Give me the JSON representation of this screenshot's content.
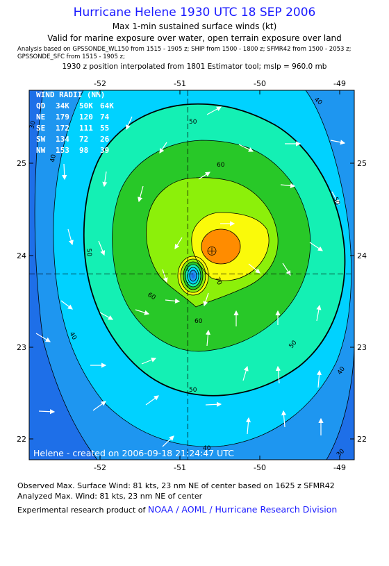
{
  "header": {
    "title": "Hurricane Helene 1930 UTC 18 SEP 2006",
    "subtitle": "Max 1-min sustained surface winds (kt)",
    "validity": "Valid for marine exposure over water, open terrain exposure over land",
    "analysis_line1": "Analysis based on  GPSSONDE_WL150 from 1515 - 1905 z;  SHIP from 1500 - 1800 z;  SFMR42 from 1500 - 2053 z;",
    "analysis_line2": "GPSSONDE_SFC from 1515 - 1905 z;",
    "position_line": "1930 z position interpolated from 1801 Estimator tool; mslp = 960.0 mb"
  },
  "map": {
    "x_ticks": [
      "-52",
      "-51",
      "-50",
      "-49"
    ],
    "y_ticks": [
      "25",
      "24",
      "23",
      "22"
    ],
    "contour_labels": [
      "40",
      "50",
      "60",
      "30",
      "70"
    ],
    "wind_radii": {
      "title": "WIND RADII (NM)",
      "header": [
        "QD",
        "34K",
        "50K",
        "64K"
      ],
      "rows": [
        [
          "NE",
          "179",
          "120",
          "74"
        ],
        [
          "SE",
          "172",
          "111",
          "55"
        ],
        [
          "SW",
          "134",
          "72",
          "26"
        ],
        [
          "NW",
          "153",
          "98",
          "39"
        ]
      ]
    },
    "credit": "Helene - created on 2006-09-18 21:24:47 UTC",
    "center": {
      "lon": -50.9,
      "lat": 23.8
    },
    "max_wind_location": {
      "lon": -50.6,
      "lat": 24.05
    },
    "colors": {
      "lt30": "#1e6fe8",
      "c30": "#1e96f0",
      "c40": "#00d2ff",
      "c50": "#14f0b4",
      "c60": "#28c828",
      "c70": "#8cf00a",
      "c80": "#fafa0a",
      "c90": "#ff8c00"
    }
  },
  "footer": {
    "observed": "Observed Max. Surface Wind: 81 kts, 23 nm NE of center based on 1625 z SFMR42",
    "analyzed": "Analyzed Max. Wind: 81 kts, 23 nm NE of center",
    "experimental": "Experimental research product of",
    "organization": "NOAA / AOML / Hurricane Research Division"
  }
}
